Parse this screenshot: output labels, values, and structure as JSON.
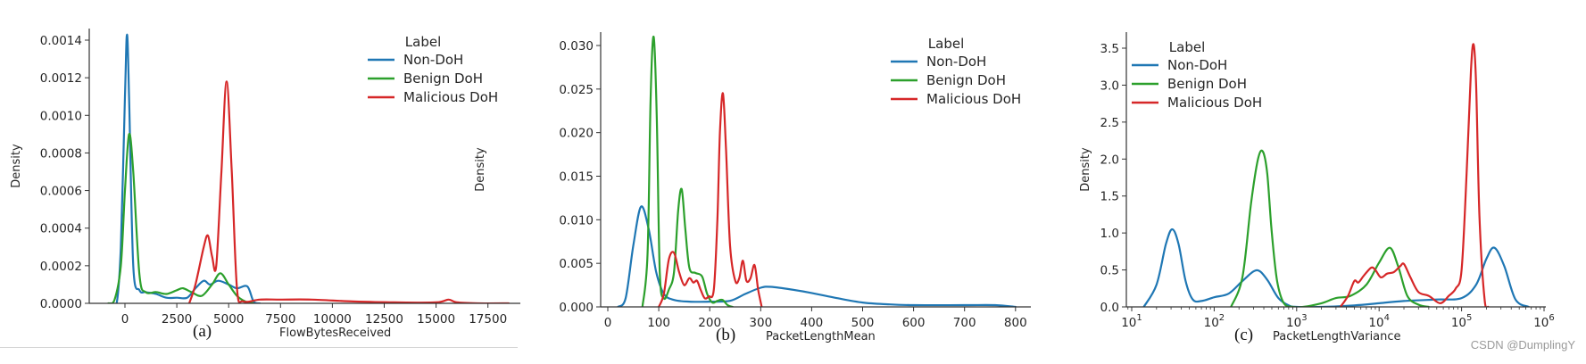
{
  "colors": {
    "non_doh": "#1f77b4",
    "benign_doh": "#2ca02c",
    "malicious_doh": "#d62728",
    "axis": "#333333"
  },
  "legend": {
    "title": "Label",
    "items": [
      "Non-DoH",
      "Benign DoH",
      "Malicious DoH"
    ]
  },
  "watermark": "CSDN @DumplingY",
  "panels": [
    {
      "caption": "(a)",
      "xlabel": "FlowBytesReceived",
      "ylabel": "Density",
      "xticks": [
        "0",
        "2500",
        "5000",
        "7500",
        "10000",
        "12500",
        "15000",
        "17500"
      ],
      "yticks": [
        "0.0000",
        "0.0002",
        "0.0004",
        "0.0006",
        "0.0008",
        "0.0010",
        "0.0012",
        "0.0014"
      ]
    },
    {
      "caption": "(b)",
      "xlabel": "PacketLengthMean",
      "ylabel": "Density",
      "xticks": [
        "0",
        "100",
        "200",
        "300",
        "400",
        "500",
        "600",
        "700",
        "800"
      ],
      "yticks": [
        "0.000",
        "0.005",
        "0.010",
        "0.015",
        "0.020",
        "0.025",
        "0.030"
      ]
    },
    {
      "caption": "(c)",
      "xlabel": "PacketLengthVariance",
      "ylabel": "Density",
      "xticks": [
        "10",
        "10",
        "10",
        "10",
        "10",
        "10"
      ],
      "xtick_exponents": [
        "1",
        "2",
        "3",
        "4",
        "5",
        "6"
      ],
      "yticks": [
        "0.0",
        "0.5",
        "1.0",
        "1.5",
        "2.0",
        "2.5",
        "3.0",
        "3.5"
      ]
    }
  ],
  "chart_data": [
    {
      "type": "line",
      "subtype": "kde",
      "title": "(a)",
      "xlabel": "FlowBytesReceived",
      "ylabel": "Density",
      "xlim": [
        -1500,
        19000
      ],
      "ylim": [
        0,
        0.00145
      ],
      "xscale": "linear",
      "grid": false,
      "legend_position": "upper right",
      "legend_title": "Label",
      "series": [
        {
          "name": "Non-DoH",
          "x": [
            -700,
            -400,
            -200,
            0,
            100,
            200,
            400,
            700,
            1000,
            1500,
            2000,
            2500,
            3000,
            3400,
            3800,
            4100,
            4500,
            5000,
            5400,
            5900,
            6200,
            6500
          ],
          "y": [
            0,
            0,
            0.0003,
            0.0011,
            0.00143,
            0.0011,
            0.0002,
            7e-05,
            6e-05,
            5e-05,
            3e-05,
            3e-05,
            3e-05,
            8e-05,
            0.00012,
            0.0001,
            0.00012,
            0.0001,
            8e-05,
            9e-05,
            1e-05,
            0
          ]
        },
        {
          "name": "Benign DoH",
          "x": [
            -800,
            -500,
            -200,
            0,
            200,
            400,
            700,
            1000,
            1500,
            2000,
            2500,
            2800,
            3200,
            3700,
            4200,
            4600,
            5000,
            5400,
            5800,
            6200
          ],
          "y": [
            0,
            2e-05,
            0.0002,
            0.0006,
            0.0009,
            0.0007,
            0.00015,
            6e-05,
            6e-05,
            5e-05,
            7e-05,
            8e-05,
            6e-05,
            4e-05,
            0.0001,
            0.00016,
            0.0001,
            4e-05,
            1e-05,
            0
          ]
        },
        {
          "name": "Malicious DoH",
          "x": [
            3100,
            3400,
            3800,
            4000,
            4200,
            4400,
            4650,
            4900,
            5150,
            5400,
            5700,
            6500,
            7500,
            9000,
            11000,
            13000,
            15000,
            15600,
            16000,
            17000,
            18500
          ],
          "y": [
            0,
            0.0001,
            0.0003,
            0.00036,
            0.00025,
            0.0002,
            0.0007,
            0.00118,
            0.0007,
            8e-05,
            1e-05,
            2e-05,
            2e-05,
            2e-05,
            1e-05,
            5e-06,
            5e-06,
            2e-05,
            5e-06,
            0,
            0
          ]
        }
      ]
    },
    {
      "type": "line",
      "subtype": "kde",
      "title": "(b)",
      "xlabel": "PacketLengthMean",
      "ylabel": "Density",
      "xlim": [
        -20,
        830
      ],
      "ylim": [
        0,
        0.0315
      ],
      "xscale": "linear",
      "grid": false,
      "legend_position": "upper right",
      "legend_title": "Label",
      "series": [
        {
          "name": "Non-DoH",
          "x": [
            20,
            35,
            50,
            65,
            80,
            95,
            110,
            130,
            160,
            200,
            240,
            270,
            300,
            320,
            360,
            400,
            450,
            500,
            550,
            600,
            700,
            760,
            800
          ],
          "y": [
            0,
            0.001,
            0.007,
            0.0115,
            0.009,
            0.004,
            0.0015,
            0.0008,
            0.0006,
            0.0006,
            0.0007,
            0.0015,
            0.0022,
            0.0023,
            0.002,
            0.0016,
            0.001,
            0.0005,
            0.0003,
            0.0002,
            0.0002,
            0.0002,
            0
          ]
        },
        {
          "name": "Benign DoH",
          "x": [
            68,
            78,
            84,
            90,
            96,
            102,
            110,
            120,
            130,
            138,
            145,
            152,
            160,
            172,
            185,
            195,
            205,
            215,
            225,
            235,
            245
          ],
          "y": [
            0,
            0.006,
            0.024,
            0.031,
            0.022,
            0.004,
            0.001,
            0.002,
            0.004,
            0.011,
            0.0135,
            0.009,
            0.0045,
            0.0039,
            0.0035,
            0.0015,
            0.0005,
            0.0007,
            0.0008,
            0.0002,
            0
          ]
        },
        {
          "name": "Malicious DoH",
          "x": [
            100,
            110,
            120,
            130,
            140,
            150,
            160,
            168,
            175,
            182,
            190,
            198,
            208,
            215,
            220,
            226,
            232,
            240,
            250,
            258,
            265,
            272,
            280,
            288,
            295,
            302
          ],
          "y": [
            0,
            0.0015,
            0.0055,
            0.0062,
            0.004,
            0.0025,
            0.0033,
            0.0028,
            0.003,
            0.002,
            0.001,
            0.0012,
            0.002,
            0.01,
            0.02,
            0.0245,
            0.018,
            0.007,
            0.003,
            0.0033,
            0.0053,
            0.003,
            0.0033,
            0.0048,
            0.002,
            0
          ]
        }
      ]
    },
    {
      "type": "line",
      "subtype": "kde",
      "title": "(c)",
      "xlabel": "PacketLengthVariance",
      "ylabel": "Density",
      "xlim": [
        8,
        1100000
      ],
      "ylim": [
        0,
        3.6
      ],
      "xscale": "log",
      "grid": false,
      "legend_position": "upper left",
      "legend_title": "Label",
      "series": [
        {
          "name": "Non-DoH",
          "x": [
            14,
            20,
            26,
            31,
            37,
            45,
            55,
            70,
            100,
            150,
            220,
            300,
            360,
            450,
            600,
            800,
            1000,
            2000,
            5000,
            10000,
            20000,
            50000,
            100000,
            150000,
            200000,
            250000,
            330000,
            450000,
            650000
          ],
          "y": [
            0,
            0.3,
            0.85,
            1.05,
            0.85,
            0.35,
            0.1,
            0.08,
            0.13,
            0.18,
            0.35,
            0.48,
            0.48,
            0.35,
            0.12,
            0.02,
            0.0,
            0.0,
            0.02,
            0.05,
            0.08,
            0.1,
            0.12,
            0.3,
            0.65,
            0.8,
            0.55,
            0.1,
            0
          ]
        },
        {
          "name": "Benign DoH",
          "x": [
            160,
            220,
            280,
            340,
            390,
            440,
            500,
            580,
            700,
            900,
            1200,
            2000,
            3000,
            4500,
            7000,
            10000,
            13500,
            17000,
            22000,
            30000,
            40000
          ],
          "y": [
            0,
            0.4,
            1.4,
            2.0,
            2.1,
            1.8,
            1.0,
            0.35,
            0.05,
            0.0,
            0.0,
            0.05,
            0.12,
            0.15,
            0.3,
            0.6,
            0.8,
            0.55,
            0.15,
            0.03,
            0
          ]
        },
        {
          "name": "Malicious DoH",
          "x": [
            3400,
            4200,
            5000,
            5600,
            6500,
            8000,
            9000,
            10500,
            12500,
            15000,
            18000,
            20000,
            24000,
            30000,
            40000,
            55000,
            70000,
            85000,
            100000,
            115000,
            130000,
            140000,
            150000,
            165000,
            190000,
            210000
          ],
          "y": [
            0,
            0.15,
            0.35,
            0.33,
            0.42,
            0.53,
            0.5,
            0.4,
            0.45,
            0.47,
            0.55,
            0.58,
            0.4,
            0.2,
            0.15,
            0.05,
            0.15,
            0.25,
            0.5,
            1.8,
            3.2,
            3.55,
            3.0,
            1.2,
            0.1,
            0
          ]
        }
      ]
    }
  ]
}
